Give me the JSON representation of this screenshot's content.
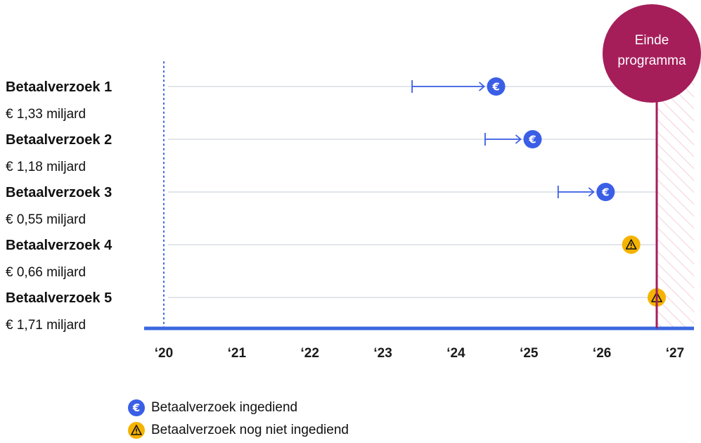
{
  "chart_data": {
    "type": "timeline",
    "end_label_line1": "Einde",
    "end_label_line2": "programma",
    "end_of_program": 2026.75,
    "xlim": [
      2020,
      2027.3
    ],
    "ticks": [
      {
        "value": 2020,
        "label": "‘20"
      },
      {
        "value": 2021,
        "label": "‘21"
      },
      {
        "value": 2022,
        "label": "‘22"
      },
      {
        "value": 2023,
        "label": "‘23"
      },
      {
        "value": 2024,
        "label": "‘24"
      },
      {
        "value": 2025,
        "label": "‘25"
      },
      {
        "value": 2026,
        "label": "‘26"
      },
      {
        "value": 2027,
        "label": "‘27"
      }
    ],
    "requests": [
      {
        "name": "Betaalverzoek 1",
        "amount": "€ 1,33 miljard",
        "start": 2023.4,
        "submitted": 2024.55,
        "status": "ingediend"
      },
      {
        "name": "Betaalverzoek 2",
        "amount": "€ 1,18 miljard",
        "start": 2024.4,
        "submitted": 2025.05,
        "status": "ingediend"
      },
      {
        "name": "Betaalverzoek 3",
        "amount": "€ 0,55 miljard",
        "start": 2025.4,
        "submitted": 2026.05,
        "status": "ingediend"
      },
      {
        "name": "Betaalverzoek 4",
        "amount": "€ 0,66 miljard",
        "start": null,
        "submitted": 2026.4,
        "status": "nog niet ingediend"
      },
      {
        "name": "Betaalverzoek 5",
        "amount": "€ 1,71 miljard",
        "start": null,
        "submitted": 2026.75,
        "status": "nog niet ingediend"
      }
    ],
    "legend": [
      {
        "icon": "euro-icon",
        "label": "Betaalverzoek ingediend"
      },
      {
        "icon": "warning-icon",
        "label": "Betaalverzoek nog niet ingediend"
      }
    ],
    "colors": {
      "submitted": "#3b5ee6",
      "pending": "#f5b301",
      "end_marker": "#a51e5a",
      "axis": "#3b68e0",
      "gridline": "#e2e6ea"
    }
  }
}
